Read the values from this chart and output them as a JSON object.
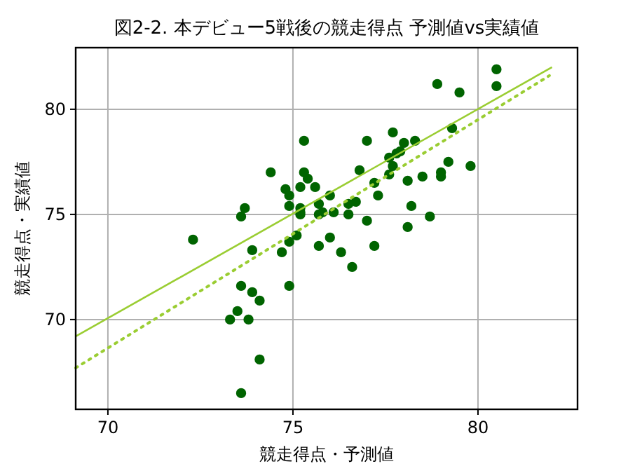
{
  "chart_data": {
    "type": "scatter",
    "title": "図2-2. 本デビュー5戦後の競走得点 予測値vs実績値",
    "xlabel": "競走得点・予測値",
    "ylabel": "競走得点・実績値",
    "xlim": [
      69.13,
      82.69
    ],
    "ylim": [
      65.73,
      82.93
    ],
    "xticks": [
      70,
      75,
      80
    ],
    "yticks": [
      70,
      75,
      80
    ],
    "grid": true,
    "series": [
      {
        "color": "#006400",
        "marker": "circle",
        "x": [
          72.3,
          73.9,
          74.7,
          74.9,
          75.1,
          75.7,
          76.0,
          73.6,
          73.9,
          74.1,
          74.9,
          73.5,
          73.3,
          73.8,
          74.1,
          73.6,
          75.3,
          74.4,
          75.3,
          75.4,
          75.2,
          75.6,
          74.8,
          74.9,
          76.0,
          74.9,
          75.2,
          75.7,
          73.7,
          73.6,
          75.2,
          75.2,
          75.7,
          75.8,
          76.1,
          80.5,
          80.5,
          78.9,
          79.5,
          79.3,
          77.0,
          77.7,
          78.0,
          78.3,
          77.6,
          77.8,
          77.9,
          77.7,
          76.8,
          77.6,
          78.1,
          78.5,
          79.0,
          79.0,
          79.2,
          79.8,
          77.2,
          77.3,
          76.7,
          76.5,
          76.5,
          77.0,
          78.2,
          78.7,
          78.1,
          76.3,
          77.2,
          76.6
        ],
        "values": [
          73.8,
          73.3,
          73.2,
          73.7,
          74.0,
          73.5,
          73.9,
          71.6,
          71.3,
          70.9,
          71.6,
          70.4,
          70.0,
          70.0,
          68.1,
          66.5,
          78.5,
          77.0,
          77.0,
          76.7,
          76.3,
          76.3,
          76.2,
          75.9,
          75.9,
          75.4,
          75.3,
          75.5,
          75.3,
          74.9,
          75.0,
          75.1,
          75.0,
          75.1,
          75.1,
          81.9,
          81.1,
          81.2,
          80.8,
          79.1,
          78.5,
          78.9,
          78.4,
          78.5,
          77.7,
          77.9,
          78.0,
          77.3,
          77.1,
          76.9,
          76.6,
          76.8,
          76.8,
          77.0,
          77.5,
          77.3,
          76.5,
          75.9,
          75.6,
          75.5,
          75.0,
          74.7,
          75.4,
          74.9,
          74.4,
          73.2,
          73.5,
          72.5
        ]
      },
      {
        "type": "line",
        "color": "#9acd32",
        "line_style": "solid",
        "x": [
          69.13,
          82.0
        ],
        "values": [
          69.2,
          82.0
        ]
      },
      {
        "type": "line",
        "color": "#9acd32",
        "line_style": "dotted",
        "x": [
          69.13,
          81.93
        ],
        "values": [
          67.7,
          81.6
        ]
      }
    ]
  }
}
